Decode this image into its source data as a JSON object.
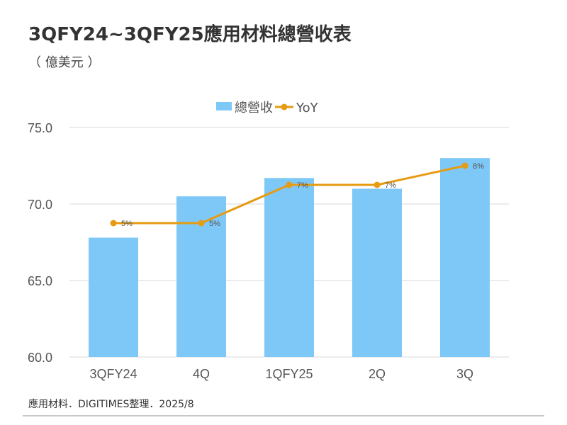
{
  "title": "3QFY24~3QFY25應用材料總營收表",
  "subtitle": "（ 億美元 ）",
  "source": "應用材料．DIGITIMES整理．2025/8",
  "colors": {
    "bar": "#7ec8f8",
    "line": "#e69b12",
    "grid": "#d9d9d9",
    "text": "#555555"
  },
  "chart_data": {
    "type": "bar",
    "categories": [
      "3QFY24",
      "4Q",
      "1QFY25",
      "2Q",
      "3Q"
    ],
    "series": [
      {
        "name": "總營收",
        "type": "bar",
        "axis": "left",
        "values": [
          67.8,
          70.5,
          71.7,
          71.0,
          73.0
        ]
      },
      {
        "name": "YoY",
        "type": "line",
        "axis": "secondary",
        "values": [
          5,
          5,
          7,
          7,
          8
        ],
        "labels": [
          "5%",
          "5%",
          "7%",
          "7%",
          "8%"
        ]
      }
    ],
    "ylim": [
      60.0,
      75.0
    ],
    "yticks": [
      "75.0",
      "70.0",
      "65.0",
      "60.0"
    ],
    "secondary_ylim": [
      -2,
      10
    ],
    "legend": "top",
    "grid": true
  }
}
